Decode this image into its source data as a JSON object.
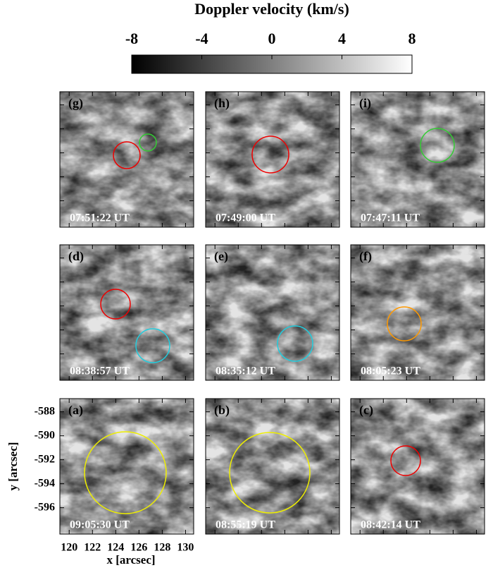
{
  "chart_data": {
    "type": "image-grid",
    "title": "Doppler velocity (km/s)",
    "colorbar": {
      "lim": [
        -8,
        8
      ],
      "ticks": [
        -8,
        -4,
        0,
        4,
        8
      ]
    },
    "panels": [
      {
        "label": "(g)",
        "time": "07:51:22 UT"
      },
      {
        "label": "(h)",
        "time": "07:49:00 UT"
      },
      {
        "label": "(i)",
        "time": "07:47:11 UT"
      },
      {
        "label": "(d)",
        "time": "08:38:57 UT"
      },
      {
        "label": "(e)",
        "time": "08:35:12 UT"
      },
      {
        "label": "(f)",
        "time": "08:05:23 UT"
      },
      {
        "label": "(a)",
        "time": "09:05:30 UT"
      },
      {
        "label": "(b)",
        "time": "08:55:19 UT"
      },
      {
        "label": "(c)",
        "time": "08:42:14 UT"
      }
    ],
    "xlabel": "x [arcsec]",
    "ylabel": "y [arcsec]",
    "xlim": [
      119.2,
      130.7
    ],
    "ylim": [
      -598.2,
      -586.9
    ],
    "xticks": [
      120,
      122,
      124,
      126,
      128,
      130
    ],
    "yticks": [
      -588,
      -590,
      -592,
      -594,
      -596
    ]
  }
}
